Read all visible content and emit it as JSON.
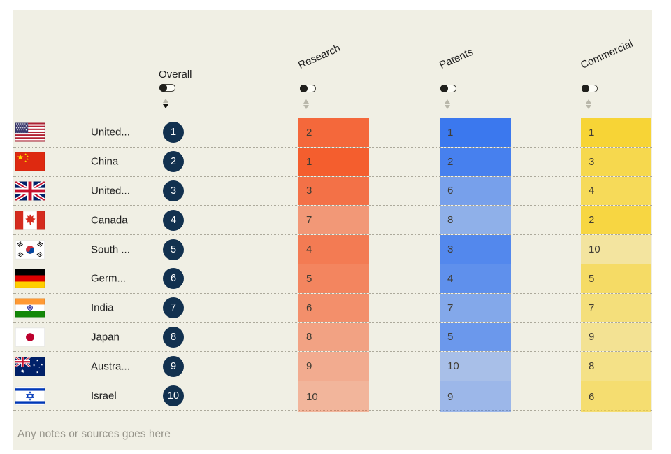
{
  "page": {
    "background": "#ffffff",
    "panel_background": "#f0efe4",
    "divider_color": "#aca99b"
  },
  "columns": [
    {
      "key": "overall",
      "label": "Overall",
      "style": "circle",
      "color": "#12314f",
      "toggle": "off",
      "sort_active": true
    },
    {
      "key": "research",
      "label": "Research",
      "style": "heat",
      "color": "#f45e2e",
      "toggle": "off",
      "sort_active": false
    },
    {
      "key": "patents",
      "label": "Patents",
      "style": "heat",
      "color": "#3b78ee",
      "toggle": "off",
      "sort_active": false
    },
    {
      "key": "commercial",
      "label": "Commercial",
      "style": "heat",
      "color": "#f7d436",
      "toggle": "off",
      "sort_active": false
    }
  ],
  "icons": {
    "toggle": "switch-off-knob-left",
    "sort": "up-down-triangles"
  },
  "rows": [
    {
      "country": "United...",
      "flag": "us",
      "overall": 1,
      "research": 2,
      "patents": 1,
      "commercial": 1
    },
    {
      "country": "China",
      "flag": "cn",
      "overall": 2,
      "research": 1,
      "patents": 2,
      "commercial": 3
    },
    {
      "country": "United...",
      "flag": "gb",
      "overall": 3,
      "research": 3,
      "patents": 6,
      "commercial": 4
    },
    {
      "country": "Canada",
      "flag": "ca",
      "overall": 4,
      "research": 7,
      "patents": 8,
      "commercial": 2
    },
    {
      "country": "South ...",
      "flag": "kr",
      "overall": 5,
      "research": 4,
      "patents": 3,
      "commercial": 10
    },
    {
      "country": "Germ...",
      "flag": "de",
      "overall": 6,
      "research": 5,
      "patents": 4,
      "commercial": 5
    },
    {
      "country": "India",
      "flag": "in",
      "overall": 7,
      "research": 6,
      "patents": 7,
      "commercial": 7
    },
    {
      "country": "Japan",
      "flag": "jp",
      "overall": 8,
      "research": 8,
      "patents": 5,
      "commercial": 9
    },
    {
      "country": "Austra...",
      "flag": "au",
      "overall": 9,
      "research": 9,
      "patents": 10,
      "commercial": 8
    },
    {
      "country": "Israel",
      "flag": "il",
      "overall": 10,
      "research": 10,
      "patents": 9,
      "commercial": 6
    }
  ],
  "footer": {
    "note": "Any notes or sources goes here"
  },
  "chart_data": {
    "type": "table",
    "title": "",
    "categories": [
      "United...",
      "China",
      "United...",
      "Canada",
      "South ...",
      "Germ...",
      "India",
      "Japan",
      "Austra...",
      "Israel"
    ],
    "series": [
      {
        "name": "Overall",
        "values": [
          1,
          2,
          3,
          4,
          5,
          6,
          7,
          8,
          9,
          10
        ]
      },
      {
        "name": "Research",
        "values": [
          2,
          1,
          3,
          7,
          4,
          5,
          6,
          8,
          9,
          10
        ]
      },
      {
        "name": "Patents",
        "values": [
          1,
          2,
          6,
          8,
          3,
          4,
          7,
          5,
          10,
          9
        ]
      },
      {
        "name": "Commercial",
        "values": [
          1,
          3,
          4,
          2,
          10,
          5,
          7,
          9,
          8,
          6
        ]
      }
    ],
    "value_range": [
      1,
      10
    ],
    "legend_position": "none",
    "grid": "dotted-row-dividers",
    "shading": "lower rank value = darker cell color",
    "cell_colors": {
      "research": "#f45e2e",
      "patents": "#3b78ee",
      "commercial": "#f7d436"
    }
  }
}
